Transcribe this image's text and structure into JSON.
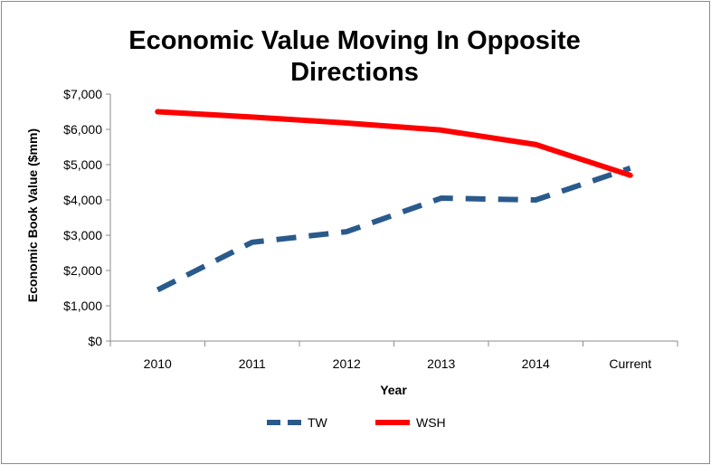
{
  "chart_data": {
    "type": "line",
    "title_lines": [
      "Economic Value Moving In Opposite",
      "Directions"
    ],
    "xlabel": "Year",
    "ylabel": "Economic Book Value ($mm)",
    "categories": [
      "2010",
      "2011",
      "2012",
      "2013",
      "2014",
      "Current"
    ],
    "ylim": [
      0,
      7000
    ],
    "yticks": [
      0,
      1000,
      2000,
      3000,
      4000,
      5000,
      6000,
      7000
    ],
    "ytick_labels": [
      "$0",
      "$1,000",
      "$2,000",
      "$3,000",
      "$4,000",
      "$5,000",
      "$6,000",
      "$7,000"
    ],
    "grid": false,
    "legend_position": "bottom",
    "series": [
      {
        "name": "TW",
        "values": [
          1450,
          2800,
          3100,
          4050,
          4000,
          4900
        ],
        "color": "#2a5a8c",
        "style": "dashed"
      },
      {
        "name": "WSH",
        "values": [
          6500,
          6350,
          6180,
          5980,
          5570,
          4700
        ],
        "color": "#ff0000",
        "style": "solid"
      }
    ]
  }
}
